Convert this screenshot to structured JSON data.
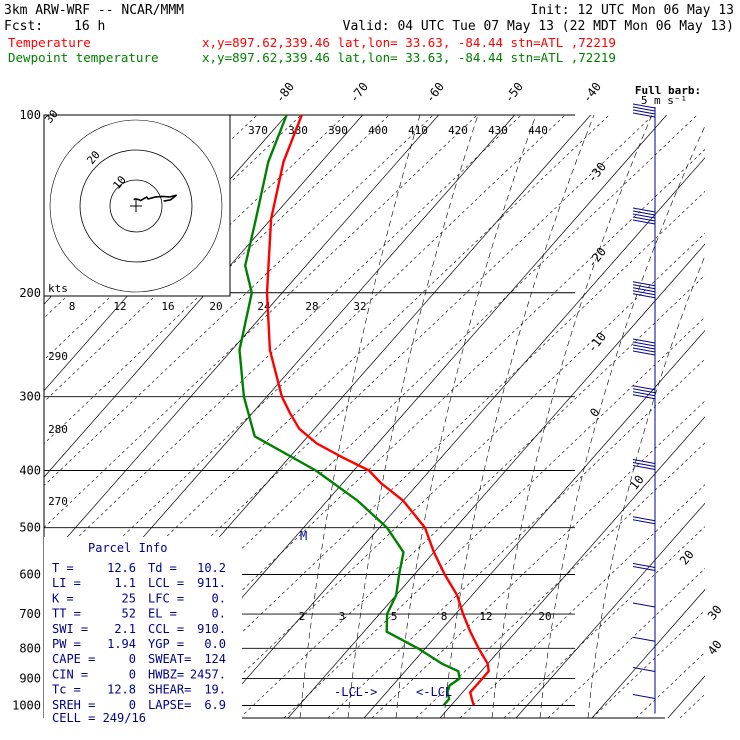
{
  "header": {
    "model": "3km ARW-WRF -- NCAR/MMM",
    "init": "Init: 12 UTC Mon 06 May 13",
    "fcst_label": "Fcst:",
    "fcst_value": "16 h",
    "valid": "Valid: 04 UTC Tue 07 May 13 (22 MDT Mon 06 May 13)"
  },
  "legend": [
    {
      "name": "Temperature",
      "loc": "x,y=897.62,339.46   lat,lon= 33.63, -84.44  stn=ATL ,72219",
      "color": "#ff0000"
    },
    {
      "name": "Dewpoint temperature",
      "loc": "x,y=897.62,339.46   lat,lon= 33.63, -84.44  stn=ATL ,72219",
      "color": "#008000"
    }
  ],
  "wind_scale": {
    "line1": "Full barb:",
    "line2": "5 m s⁻¹"
  },
  "hodograph": {
    "unit": "kts",
    "ring_labels": [
      "10",
      "20",
      "30"
    ]
  },
  "parcel": {
    "title": "Parcel Info",
    "rows": [
      [
        "T  =",
        "12.6",
        "Td =",
        "10.2"
      ],
      [
        "LI =",
        "1.1",
        "LCL =",
        "911."
      ],
      [
        "K  =",
        "25",
        "LFC =",
        "0."
      ],
      [
        "TT =",
        "52",
        "EL  =",
        "0."
      ],
      [
        "SWI =",
        "2.1",
        "CCL =",
        "910."
      ],
      [
        "PW =",
        "1.94",
        "YGP =",
        "0.0"
      ],
      [
        "CAPE =",
        "0",
        "SWEAT=",
        "124"
      ],
      [
        "CIN =",
        "0",
        "HWBZ=",
        "2457."
      ],
      [
        "Tc =",
        "12.8",
        "SHEAR=",
        "19."
      ],
      [
        "SREH =",
        "0",
        "LAPSE=",
        "6.9"
      ]
    ],
    "cell": "CELL = 249/16"
  },
  "marks": {
    "lcl_left": "-LCL->",
    "lcl_right": "<-LCL",
    "tropopause": "M"
  },
  "colors": {
    "temperature": "#ff0000",
    "dewpoint": "#008000",
    "parcel_box": "#00008b",
    "barbs": "#00008b",
    "grid": "#000000"
  },
  "chart_data": {
    "type": "line",
    "title": "",
    "ylabel": "",
    "xlabel": "",
    "y_scale": "log",
    "y_ticks": [
      100,
      200,
      300,
      400,
      500,
      600,
      700,
      800,
      900,
      1000
    ],
    "isotherm_labels": [
      -80,
      -70,
      -60,
      -50,
      -40,
      -30,
      -20,
      -10,
      0,
      10,
      20,
      30,
      40
    ],
    "theta_labels_top": [
      370,
      380,
      390,
      400,
      410,
      420,
      430,
      440
    ],
    "theta_labels_left": [
      290,
      280,
      270
    ],
    "mixing_ratio_labels_upper": [
      8,
      12,
      16,
      20,
      24,
      28,
      32
    ],
    "mixing_ratio_labels_lower": [
      2,
      3,
      5,
      8,
      12,
      20
    ],
    "series": [
      {
        "name": "Temperature",
        "points": [
          [
            1000,
            13
          ],
          [
            975,
            12
          ],
          [
            950,
            11
          ],
          [
            925,
            11
          ],
          [
            900,
            11
          ],
          [
            875,
            11
          ],
          [
            850,
            10
          ],
          [
            800,
            7
          ],
          [
            750,
            4
          ],
          [
            700,
            1
          ],
          [
            650,
            -2
          ],
          [
            600,
            -6
          ],
          [
            550,
            -10
          ],
          [
            500,
            -14
          ],
          [
            450,
            -20
          ],
          [
            420,
            -25
          ],
          [
            400,
            -28
          ],
          [
            380,
            -33
          ],
          [
            360,
            -38
          ],
          [
            340,
            -42
          ],
          [
            320,
            -45
          ],
          [
            300,
            -48
          ],
          [
            250,
            -55
          ],
          [
            200,
            -62
          ],
          [
            150,
            -70
          ],
          [
            120,
            -75
          ],
          [
            100,
            -78
          ]
        ]
      },
      {
        "name": "Dewpoint temperature",
        "points": [
          [
            1000,
            9
          ],
          [
            975,
            9
          ],
          [
            950,
            8
          ],
          [
            925,
            7.5
          ],
          [
            900,
            8
          ],
          [
            875,
            7
          ],
          [
            850,
            4
          ],
          [
            800,
            -1
          ],
          [
            750,
            -7
          ],
          [
            700,
            -9
          ],
          [
            650,
            -10
          ],
          [
            600,
            -12
          ],
          [
            550,
            -14
          ],
          [
            500,
            -19
          ],
          [
            450,
            -26
          ],
          [
            400,
            -35
          ],
          [
            350,
            -47
          ],
          [
            300,
            -53
          ],
          [
            250,
            -59
          ],
          [
            200,
            -64
          ],
          [
            180,
            -68
          ],
          [
            150,
            -72
          ],
          [
            120,
            -77
          ],
          [
            100,
            -80
          ]
        ]
      }
    ],
    "winds": [
      {
        "p": 100,
        "speed_ms": 20,
        "dir_deg": 260
      },
      {
        "p": 150,
        "speed_ms": 25,
        "dir_deg": 260
      },
      {
        "p": 200,
        "speed_ms": 30,
        "dir_deg": 255
      },
      {
        "p": 250,
        "speed_ms": 25,
        "dir_deg": 255
      },
      {
        "p": 300,
        "speed_ms": 20,
        "dir_deg": 250
      },
      {
        "p": 400,
        "speed_ms": 15,
        "dir_deg": 245
      },
      {
        "p": 500,
        "speed_ms": 10,
        "dir_deg": 240
      },
      {
        "p": 600,
        "speed_ms": 10,
        "dir_deg": 230
      },
      {
        "p": 700,
        "speed_ms": 5,
        "dir_deg": 220
      },
      {
        "p": 800,
        "speed_ms": 5,
        "dir_deg": 210
      },
      {
        "p": 900,
        "speed_ms": 5,
        "dir_deg": 180
      },
      {
        "p": 1000,
        "speed_ms": 5,
        "dir_deg": 160
      }
    ]
  }
}
